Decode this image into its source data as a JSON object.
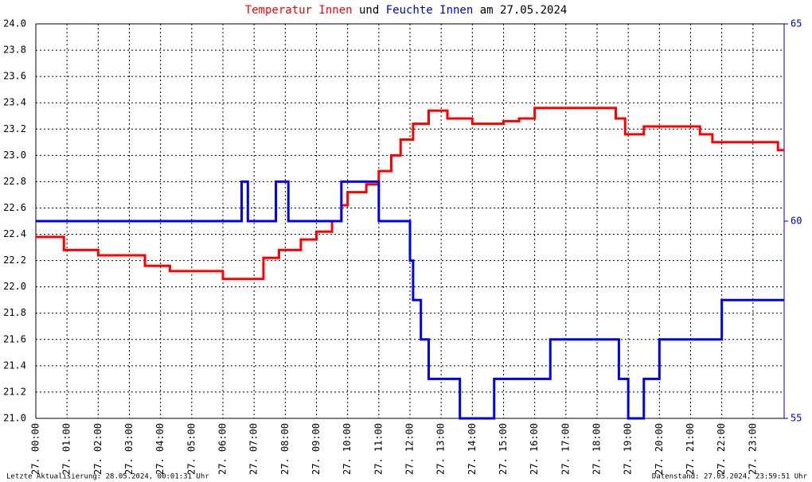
{
  "chart_data": {
    "type": "line",
    "title_parts": [
      {
        "text": "Temperatur Innen",
        "color": "#ff0000"
      },
      {
        "text": "und",
        "color": "#000000"
      },
      {
        "text": "Feuchte Innen",
        "color": "#0000cc"
      },
      {
        "text": "am 27.05.2024",
        "color": "#000000"
      }
    ],
    "series": [
      {
        "name": "Temperatur Innen",
        "color": "#ff0000",
        "axis": "y",
        "x": [
          0,
          0.9,
          0.9,
          2,
          2,
          3.5,
          3.5,
          4.3,
          4.3,
          6,
          6,
          7.3,
          7.3,
          7.8,
          7.8,
          8.5,
          8.5,
          9,
          9,
          9.5,
          9.5,
          9.8,
          9.8,
          10,
          10,
          10.6,
          10.6,
          11,
          11,
          11.4,
          11.4,
          11.7,
          11.7,
          12.1,
          12.1,
          12.6,
          12.6,
          13.2,
          13.2,
          14,
          14,
          15,
          15,
          15.5,
          15.5,
          16,
          16,
          18.6,
          18.6,
          18.9,
          18.9,
          19.5,
          19.5,
          21.3,
          21.3,
          21.7,
          21.7,
          23.8,
          23.8,
          24
        ],
        "values": [
          22.38,
          22.38,
          22.28,
          22.28,
          22.24,
          22.24,
          22.16,
          22.16,
          22.12,
          22.12,
          22.06,
          22.06,
          22.22,
          22.22,
          22.28,
          22.28,
          22.36,
          22.36,
          22.42,
          22.42,
          22.5,
          22.5,
          22.62,
          22.62,
          22.72,
          22.72,
          22.78,
          22.78,
          22.88,
          22.88,
          23.0,
          23.0,
          23.12,
          23.12,
          23.24,
          23.24,
          23.34,
          23.34,
          23.28,
          23.28,
          23.24,
          23.24,
          23.26,
          23.26,
          23.28,
          23.28,
          23.36,
          23.36,
          23.28,
          23.28,
          23.16,
          23.16,
          23.22,
          23.22,
          23.16,
          23.16,
          23.1,
          23.1,
          23.04,
          23.04
        ]
      },
      {
        "name": "Feuchte Innen",
        "color": "#0000ee",
        "axis": "y2",
        "x": [
          0,
          6.6,
          6.6,
          6.8,
          6.8,
          7.7,
          7.7,
          8.1,
          8.1,
          9.8,
          9.8,
          11,
          11,
          12,
          12,
          12.1,
          12.1,
          12.35,
          12.35,
          12.6,
          12.6,
          13.6,
          13.6,
          14.7,
          14.7,
          16.5,
          16.5,
          18.7,
          18.7,
          19,
          19,
          19.5,
          19.5,
          20,
          20,
          22,
          22,
          24
        ],
        "values": [
          60,
          60,
          61,
          61,
          60,
          60,
          61,
          61,
          60,
          60,
          61,
          61,
          60,
          60,
          59,
          59,
          58,
          58,
          57,
          57,
          56,
          56,
          55,
          55,
          56,
          56,
          57,
          57,
          56,
          56,
          55,
          55,
          56,
          56,
          57,
          57,
          58,
          58
        ]
      }
    ],
    "xlim": [
      0,
      24
    ],
    "xticks": [
      {
        "value": 0,
        "label": "27. 00:00"
      },
      {
        "value": 1,
        "label": "27. 01:00"
      },
      {
        "value": 2,
        "label": "27. 02:00"
      },
      {
        "value": 3,
        "label": "27. 03:00"
      },
      {
        "value": 4,
        "label": "27. 04:00"
      },
      {
        "value": 5,
        "label": "27. 05:00"
      },
      {
        "value": 6,
        "label": "27. 06:00"
      },
      {
        "value": 7,
        "label": "27. 07:00"
      },
      {
        "value": 8,
        "label": "27. 08:00"
      },
      {
        "value": 9,
        "label": "27. 09:00"
      },
      {
        "value": 10,
        "label": "27. 10:00"
      },
      {
        "value": 11,
        "label": "27. 11:00"
      },
      {
        "value": 12,
        "label": "27. 12:00"
      },
      {
        "value": 13,
        "label": "27. 13:00"
      },
      {
        "value": 14,
        "label": "27. 14:00"
      },
      {
        "value": 15,
        "label": "27. 15:00"
      },
      {
        "value": 16,
        "label": "27. 16:00"
      },
      {
        "value": 17,
        "label": "27. 17:00"
      },
      {
        "value": 18,
        "label": "27. 18:00"
      },
      {
        "value": 19,
        "label": "27. 19:00"
      },
      {
        "value": 20,
        "label": "27. 20:00"
      },
      {
        "value": 21,
        "label": "27. 21:00"
      },
      {
        "value": 22,
        "label": "27. 22:00"
      },
      {
        "value": 23,
        "label": "27. 23:00"
      }
    ],
    "ylim": [
      21.0,
      24.0
    ],
    "yticks": [
      {
        "value": 21,
        "label": "21.0"
      },
      21.2,
      21.4,
      21.6,
      21.8,
      {
        "value": 22,
        "label": "22.0"
      },
      22.2,
      22.4,
      22.6,
      22.8,
      {
        "value": 23,
        "label": "23.0"
      },
      23.2,
      23.4,
      23.6,
      23.8,
      {
        "value": 24,
        "label": "24.0"
      }
    ],
    "y2lim": [
      55,
      65
    ],
    "y2ticks": [
      55,
      60,
      65
    ],
    "y2_color": "#0000cc",
    "grid": true,
    "footer_left": "Letzte Aktualisierung: 28.05.2024, 00:01:31 Uhr",
    "footer_right": "Datenstand: 27.05.2024, 23:59:51 Uhr"
  }
}
